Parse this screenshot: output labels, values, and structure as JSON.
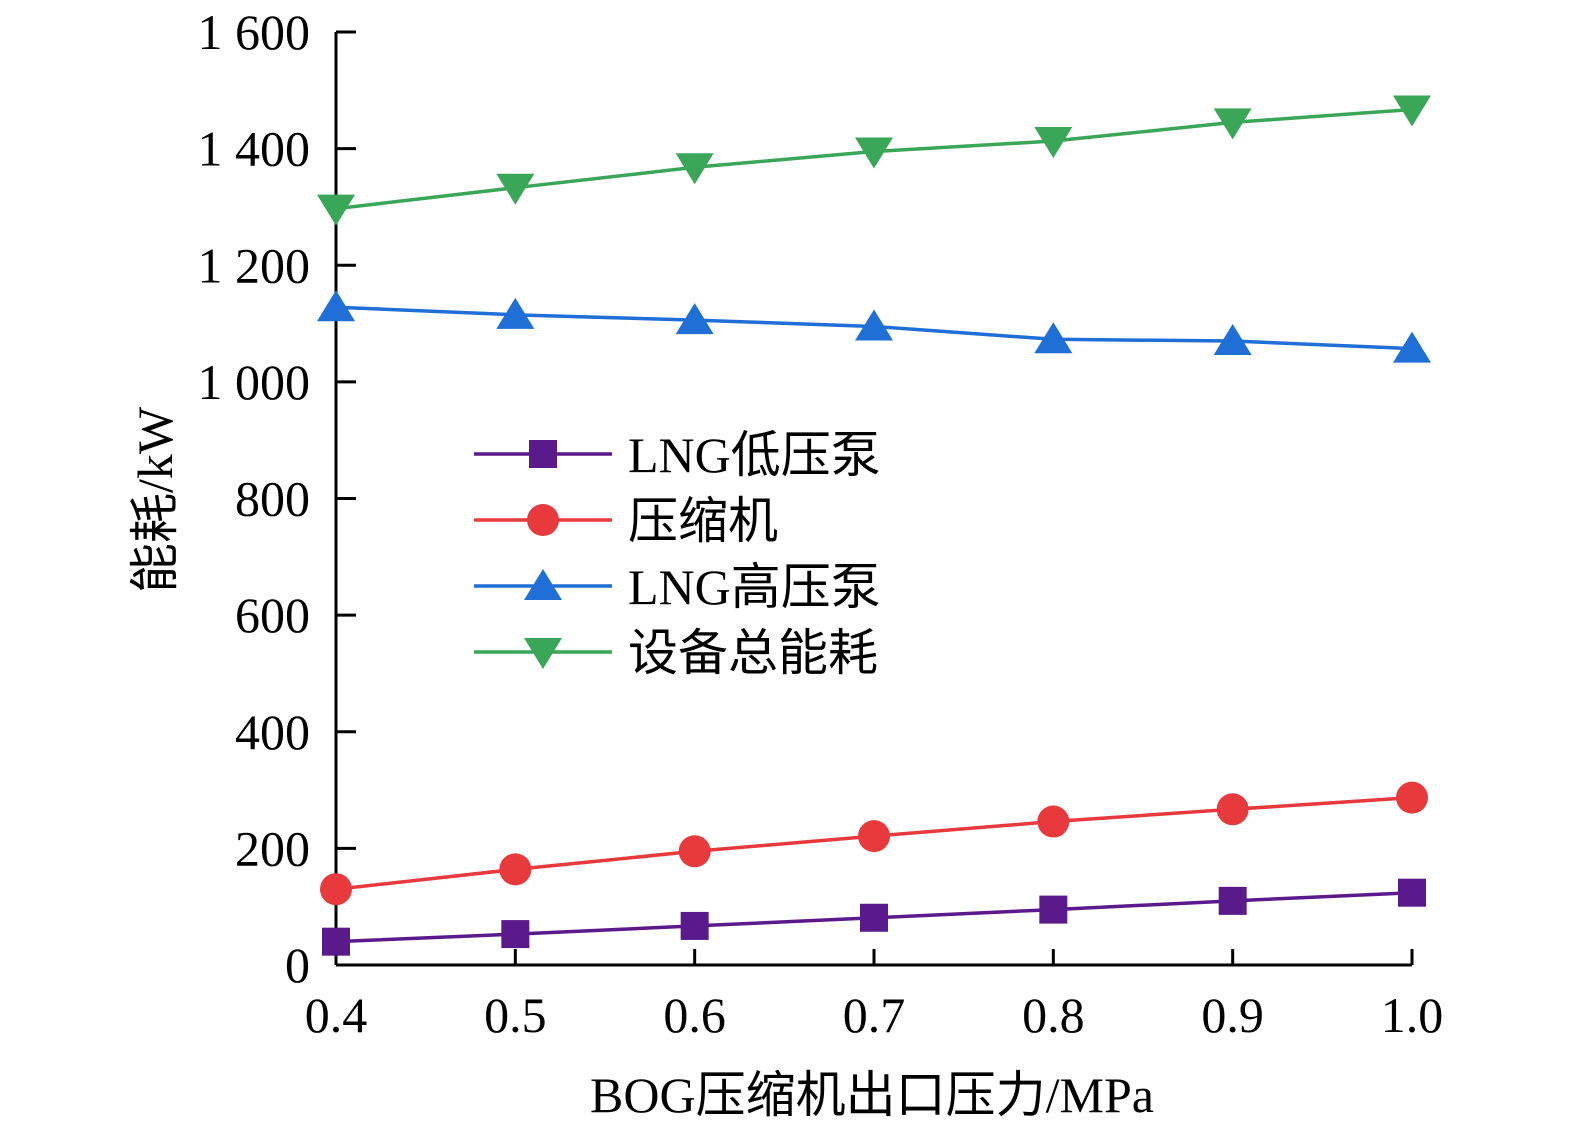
{
  "chart_data": {
    "type": "line",
    "xlabel": "BOG压缩机出口压力/MPa",
    "ylabel": "能耗/kW",
    "x": [
      0.4,
      0.5,
      0.6,
      0.7,
      0.8,
      0.9,
      1.0
    ],
    "xlim": [
      0.4,
      1.0
    ],
    "ylim": [
      0,
      1600
    ],
    "x_ticks": [
      0.4,
      0.5,
      0.6,
      0.7,
      0.8,
      0.9,
      1.0
    ],
    "x_tick_labels": [
      "0.4",
      "0.5",
      "0.6",
      "0.7",
      "0.8",
      "0.9",
      "1.0"
    ],
    "y_ticks": [
      0,
      200,
      400,
      600,
      800,
      1000,
      1200,
      1400,
      1600
    ],
    "y_tick_labels": [
      "0",
      "200",
      "400",
      "600",
      "800",
      "1 000",
      "1 200",
      "1 400",
      "1 600"
    ],
    "grid": false,
    "legend_position": "center-left",
    "series": [
      {
        "name": "LNG低压泵",
        "marker": "square",
        "color": "#5b1a8c",
        "values": [
          40,
          53,
          67,
          81,
          95,
          110,
          124
        ]
      },
      {
        "name": "压缩机",
        "marker": "circle",
        "color": "#e8393c",
        "values": [
          130,
          164,
          195,
          221,
          246,
          267,
          287
        ]
      },
      {
        "name": "LNG高压泵",
        "marker": "triangle-up",
        "color": "#1f6fd6",
        "values": [
          1128,
          1115,
          1106,
          1095,
          1073,
          1070,
          1057
        ]
      },
      {
        "name": "设备总能耗",
        "marker": "triangle-down",
        "color": "#3aa657",
        "values": [
          1297,
          1333,
          1368,
          1395,
          1413,
          1445,
          1467
        ]
      }
    ]
  }
}
